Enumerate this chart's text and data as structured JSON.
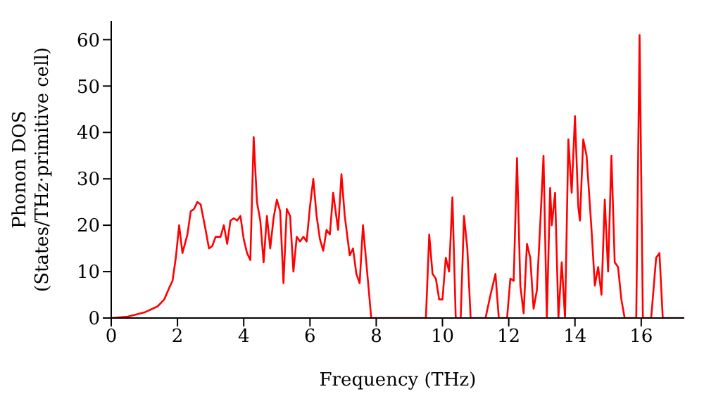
{
  "chart_data": {
    "type": "line",
    "xlabel": "Frequency (THz)",
    "ylabel": "Phonon DOS\n(States/THz·primitive cell)",
    "xlim": [
      0,
      17.3
    ],
    "ylim": [
      0,
      64
    ],
    "xticks": [
      0,
      2,
      4,
      6,
      8,
      10,
      12,
      14,
      16
    ],
    "yticks": [
      0,
      10,
      20,
      30,
      40,
      50,
      60
    ],
    "grid": false,
    "legend": false,
    "marker": "none",
    "line_style": "solid",
    "series": [
      {
        "color": "#ff0000",
        "x": [
          0,
          0.5,
          1,
          1.4,
          1.6,
          1.75,
          1.85,
          1.95,
          2.05,
          2.15,
          2.3,
          2.4,
          2.5,
          2.6,
          2.7,
          2.85,
          2.95,
          3.05,
          3.15,
          3.3,
          3.4,
          3.5,
          3.6,
          3.7,
          3.8,
          3.9,
          4.0,
          4.1,
          4.2,
          4.3,
          4.4,
          4.5,
          4.6,
          4.7,
          4.8,
          4.9,
          5.0,
          5.1,
          5.2,
          5.3,
          5.4,
          5.5,
          5.6,
          5.7,
          5.8,
          5.9,
          6.0,
          6.1,
          6.2,
          6.3,
          6.4,
          6.5,
          6.6,
          6.7,
          6.85,
          6.95,
          7.05,
          7.2,
          7.3,
          7.4,
          7.5,
          7.6,
          7.75,
          7.85,
          9.5,
          9.6,
          9.7,
          9.8,
          9.9,
          10.0,
          10.1,
          10.2,
          10.3,
          10.4,
          10.55,
          10.65,
          10.75,
          10.85,
          11.3,
          11.45,
          11.6,
          11.7,
          11.95,
          12.05,
          12.15,
          12.25,
          12.35,
          12.45,
          12.55,
          12.65,
          12.75,
          12.85,
          12.95,
          13.05,
          13.15,
          13.25,
          13.3,
          13.4,
          13.5,
          13.6,
          13.7,
          13.8,
          13.9,
          14.0,
          14.1,
          14.15,
          14.25,
          14.35,
          14.5,
          14.6,
          14.7,
          14.8,
          14.9,
          15.0,
          15.1,
          15.2,
          15.3,
          15.4,
          15.5,
          15.85,
          15.95,
          16.05,
          16.3,
          16.45,
          16.55,
          16.65,
          17.3
        ],
        "values": [
          0,
          0.3,
          1.2,
          2.5,
          4,
          6.5,
          8,
          13,
          20,
          14,
          18,
          23,
          23.5,
          25,
          24.5,
          19,
          15,
          15.5,
          17.5,
          17.5,
          20,
          16,
          21,
          21.5,
          21,
          22,
          17,
          14,
          12.5,
          39,
          25,
          21,
          12,
          22,
          15,
          21.5,
          25.5,
          23,
          7.5,
          23.5,
          22,
          10,
          17.5,
          16.5,
          17.5,
          16.5,
          24,
          30,
          22,
          17,
          14.5,
          19,
          18,
          27,
          19,
          31,
          22,
          13.5,
          15,
          9.5,
          7.5,
          20,
          8,
          0,
          0,
          18,
          9.5,
          8.5,
          4,
          4,
          13,
          10,
          26,
          0,
          0,
          22,
          15,
          0,
          0,
          5,
          9.5,
          0,
          0,
          8.5,
          8,
          34.5,
          7,
          1,
          16,
          13,
          2,
          6,
          20,
          35,
          0,
          28,
          20,
          27,
          0,
          12,
          0,
          38.5,
          27,
          43.5,
          24,
          21,
          38.5,
          35,
          19,
          7,
          11,
          5,
          25.5,
          10,
          35,
          12,
          11,
          4,
          0,
          0,
          61,
          0,
          0,
          13,
          14,
          0,
          0
        ]
      }
    ]
  }
}
